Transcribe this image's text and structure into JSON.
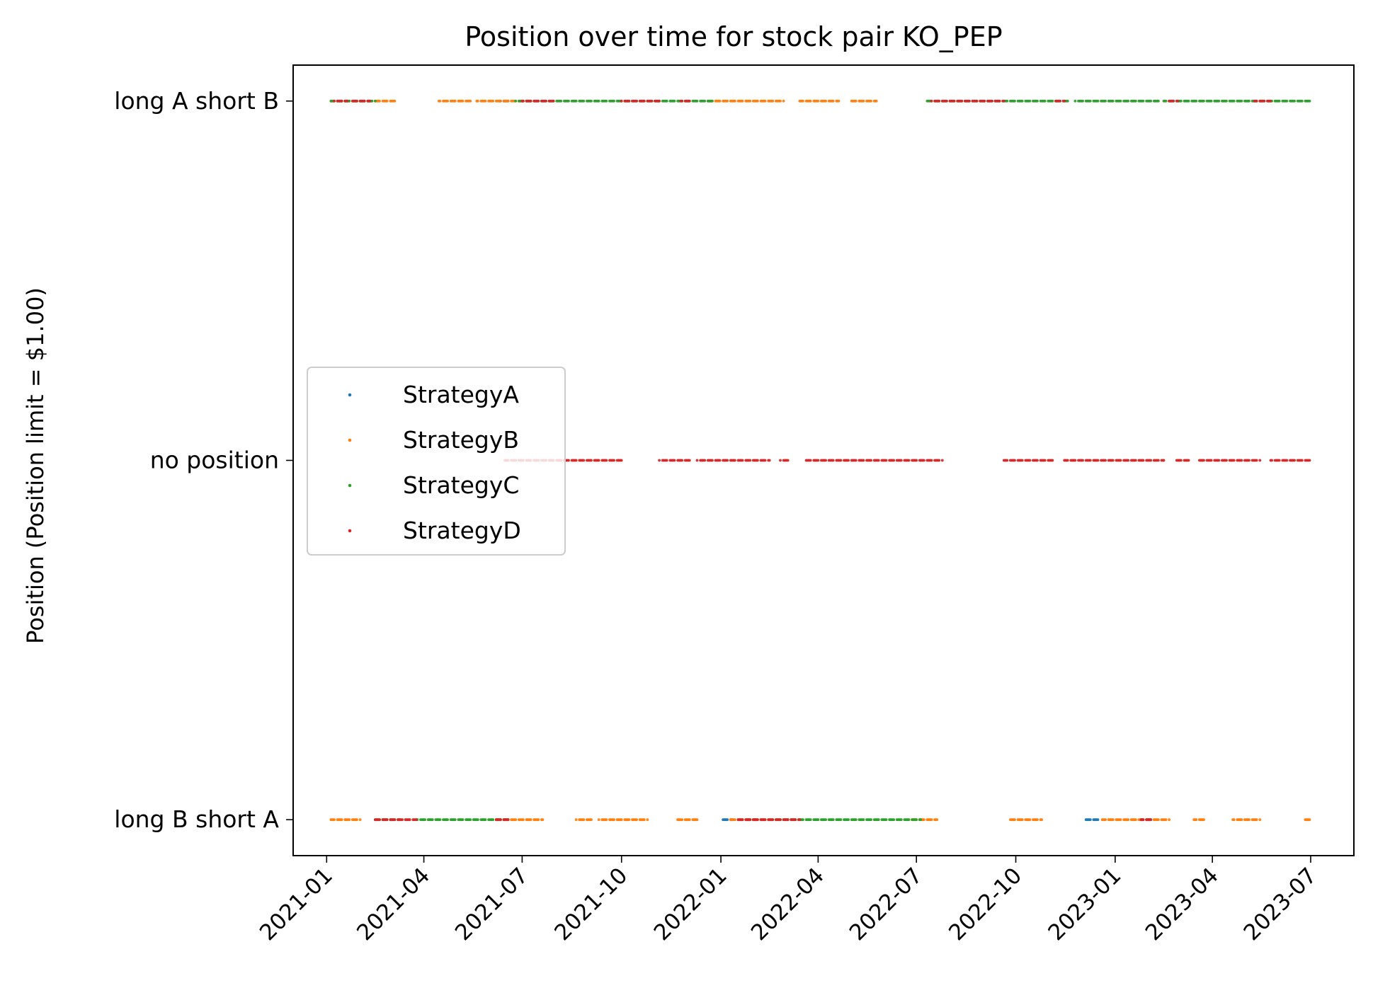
{
  "chart_data": {
    "type": "scatter",
    "title": "Position over time for stock pair KO_PEP",
    "xlabel": "",
    "ylabel": "Position (Position limit = $1.00)",
    "x_ticks": [
      "2021-01",
      "2021-04",
      "2021-07",
      "2021-10",
      "2022-01",
      "2022-04",
      "2022-07",
      "2022-10",
      "2023-01",
      "2023-04",
      "2023-07"
    ],
    "x_range": [
      "2020-12-01",
      "2023-08-10"
    ],
    "y_ticks": [
      {
        "value": 1,
        "label": "long A short B"
      },
      {
        "value": 0,
        "label": "no position"
      },
      {
        "value": -1,
        "label": "long B short A"
      }
    ],
    "y_range": [
      -1.1,
      1.1
    ],
    "grid": false,
    "legend_position": "center-left",
    "marker": "small dot",
    "series": [
      {
        "name": "StrategyA",
        "color": "#1f77b4",
        "segments": [
          {
            "y": 1,
            "from": "2021-06-10",
            "to": "2021-06-20"
          },
          {
            "y": -1,
            "from": "2022-01-01",
            "to": "2022-01-12"
          },
          {
            "y": -1,
            "from": "2022-01-25",
            "to": "2022-02-03"
          },
          {
            "y": -1,
            "from": "2022-12-05",
            "to": "2022-12-16"
          },
          {
            "y": -1,
            "from": "2023-01-25",
            "to": "2023-02-03"
          }
        ]
      },
      {
        "name": "StrategyB",
        "color": "#ff7f0e",
        "segments": [
          {
            "y": 1,
            "from": "2021-01-05",
            "to": "2021-03-05"
          },
          {
            "y": 1,
            "from": "2021-04-15",
            "to": "2021-05-15"
          },
          {
            "y": 1,
            "from": "2021-05-20",
            "to": "2021-07-10"
          },
          {
            "y": 1,
            "from": "2021-12-20",
            "to": "2022-02-28"
          },
          {
            "y": 1,
            "from": "2022-03-15",
            "to": "2022-04-20"
          },
          {
            "y": 1,
            "from": "2022-05-01",
            "to": "2022-05-25"
          },
          {
            "y": -1,
            "from": "2021-01-05",
            "to": "2021-02-01"
          },
          {
            "y": -1,
            "from": "2021-06-05",
            "to": "2021-07-20"
          },
          {
            "y": -1,
            "from": "2021-08-20",
            "to": "2021-09-05"
          },
          {
            "y": -1,
            "from": "2021-09-10",
            "to": "2021-10-25"
          },
          {
            "y": -1,
            "from": "2021-11-20",
            "to": "2021-12-10"
          },
          {
            "y": -1,
            "from": "2022-01-10",
            "to": "2022-02-20"
          },
          {
            "y": -1,
            "from": "2022-06-25",
            "to": "2022-07-20"
          },
          {
            "y": -1,
            "from": "2022-09-25",
            "to": "2022-10-25"
          },
          {
            "y": -1,
            "from": "2022-12-20",
            "to": "2023-02-20"
          },
          {
            "y": -1,
            "from": "2023-03-15",
            "to": "2023-03-25"
          },
          {
            "y": -1,
            "from": "2023-04-20",
            "to": "2023-05-15"
          },
          {
            "y": -1,
            "from": "2023-06-25",
            "to": "2023-07-01"
          }
        ]
      },
      {
        "name": "StrategyC",
        "color": "#2ca02c",
        "segments": [
          {
            "y": 1,
            "from": "2021-01-05",
            "to": "2021-02-15"
          },
          {
            "y": 1,
            "from": "2021-06-25",
            "to": "2021-12-25"
          },
          {
            "y": 1,
            "from": "2022-07-10",
            "to": "2022-11-20"
          },
          {
            "y": 1,
            "from": "2022-11-25",
            "to": "2023-02-10"
          },
          {
            "y": 1,
            "from": "2023-02-15",
            "to": "2023-07-01"
          },
          {
            "y": -1,
            "from": "2021-02-15",
            "to": "2021-03-10"
          },
          {
            "y": -1,
            "from": "2021-03-25",
            "to": "2021-06-20"
          },
          {
            "y": -1,
            "from": "2022-02-20",
            "to": "2022-07-05"
          }
        ]
      },
      {
        "name": "StrategyD",
        "color": "#d62728",
        "segments": [
          {
            "y": 1,
            "from": "2021-01-08",
            "to": "2021-01-20"
          },
          {
            "y": 1,
            "from": "2021-01-25",
            "to": "2021-02-10"
          },
          {
            "y": 1,
            "from": "2021-07-01",
            "to": "2021-08-01"
          },
          {
            "y": 1,
            "from": "2021-10-01",
            "to": "2021-11-05"
          },
          {
            "y": 1,
            "from": "2021-11-25",
            "to": "2021-12-05"
          },
          {
            "y": 1,
            "from": "2022-07-15",
            "to": "2022-09-20"
          },
          {
            "y": 1,
            "from": "2022-11-05",
            "to": "2022-11-15"
          },
          {
            "y": 1,
            "from": "2023-02-20",
            "to": "2023-02-28"
          },
          {
            "y": 1,
            "from": "2023-05-10",
            "to": "2023-05-25"
          },
          {
            "y": 0,
            "from": "2021-06-15",
            "to": "2021-10-01"
          },
          {
            "y": 0,
            "from": "2021-11-05",
            "to": "2021-12-05"
          },
          {
            "y": 0,
            "from": "2021-12-10",
            "to": "2022-02-15"
          },
          {
            "y": 0,
            "from": "2022-02-25",
            "to": "2022-03-05"
          },
          {
            "y": 0,
            "from": "2022-03-20",
            "to": "2022-07-25"
          },
          {
            "y": 0,
            "from": "2022-09-20",
            "to": "2022-11-05"
          },
          {
            "y": 0,
            "from": "2022-11-15",
            "to": "2023-02-15"
          },
          {
            "y": 0,
            "from": "2023-02-25",
            "to": "2023-03-10"
          },
          {
            "y": 0,
            "from": "2023-03-20",
            "to": "2023-05-15"
          },
          {
            "y": 0,
            "from": "2023-05-25",
            "to": "2023-07-01"
          },
          {
            "y": -1,
            "from": "2021-02-15",
            "to": "2021-03-25"
          },
          {
            "y": -1,
            "from": "2021-06-05",
            "to": "2021-06-20"
          },
          {
            "y": -1,
            "from": "2022-01-15",
            "to": "2022-03-15"
          },
          {
            "y": -1,
            "from": "2023-01-25",
            "to": "2023-02-05"
          }
        ]
      }
    ]
  }
}
